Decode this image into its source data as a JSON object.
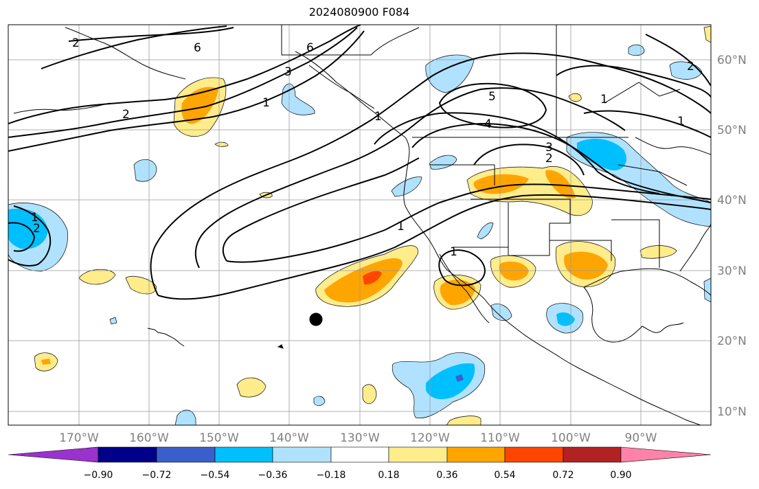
{
  "title": "2024080900 F084",
  "lon_labels": [
    "170°W",
    "160°W",
    "150°W",
    "140°W",
    "130°W",
    "120°W",
    "110°W",
    "100°W",
    "90°W"
  ],
  "lat_labels": [
    "60°N",
    "50°N",
    "40°N",
    "30°N",
    "20°N",
    "10°N"
  ],
  "colorbar": {
    "ticks": [
      "−0.90",
      "−0.72",
      "−0.54",
      "−0.36",
      "−0.18",
      "0.18",
      "0.36",
      "0.54",
      "0.72",
      "0.90"
    ],
    "colors": [
      "#9a32cd",
      "#00008b",
      "#3a5fcd",
      "#00bfff",
      "#b0e2ff",
      "#ffffff",
      "#ffec8b",
      "#ffa500",
      "#ff4500",
      "#b22222",
      "#ff82ab"
    ]
  },
  "contour_labels": [
    "5",
    "4",
    "3",
    "2",
    "1",
    "6",
    "6",
    "3",
    "2",
    "1",
    "2",
    "1",
    "1",
    "2",
    "1",
    "1",
    "1",
    "2"
  ],
  "colors": {
    "pos1": "#ffec8b",
    "pos2": "#ffa500",
    "pos3": "#ff4500",
    "neg1": "#b0e2ff",
    "neg2": "#00bfff",
    "neg3": "#3a5fcd",
    "grid": "#999999",
    "axis_label": "#808080"
  }
}
